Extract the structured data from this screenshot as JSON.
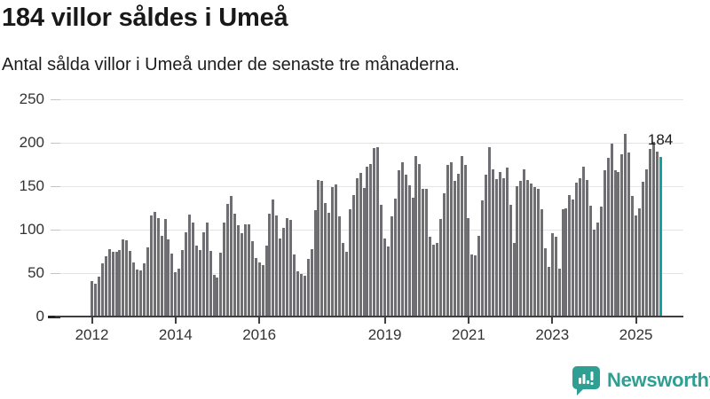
{
  "chart_data": {
    "type": "bar",
    "title": "184 villor såldes i Umeå",
    "subtitle": "Antal sålda villor i Umeå under de senaste tre månaderna.",
    "xlabel": "",
    "ylabel": "",
    "ylim": [
      0,
      250
    ],
    "yticks": [
      0,
      50,
      100,
      150,
      200,
      250
    ],
    "grid": true,
    "x_start": "2012-01",
    "frequency": "monthly",
    "xticks": [
      {
        "label": "2012",
        "month_index": 0
      },
      {
        "label": "2014",
        "month_index": 24
      },
      {
        "label": "2016",
        "month_index": 48
      },
      {
        "label": "2019",
        "month_index": 84
      },
      {
        "label": "2021",
        "month_index": 108
      },
      {
        "label": "2023",
        "month_index": 132
      },
      {
        "label": "2025",
        "month_index": 156
      }
    ],
    "values": [
      41,
      38,
      46,
      61,
      69,
      78,
      75,
      74,
      77,
      89,
      88,
      76,
      62,
      54,
      53,
      61,
      80,
      116,
      120,
      113,
      93,
      112,
      89,
      72,
      51,
      55,
      77,
      97,
      117,
      108,
      82,
      77,
      97,
      108,
      76,
      48,
      45,
      73,
      108,
      130,
      139,
      118,
      105,
      96,
      106,
      106,
      87,
      67,
      62,
      59,
      82,
      118,
      135,
      116,
      90,
      102,
      113,
      111,
      71,
      52,
      49,
      47,
      66,
      78,
      122,
      157,
      156,
      131,
      119,
      149,
      152,
      115,
      85,
      75,
      123,
      140,
      159,
      165,
      148,
      172,
      176,
      194,
      195,
      129,
      90,
      81,
      115,
      136,
      168,
      178,
      163,
      151,
      137,
      185,
      176,
      147,
      147,
      92,
      83,
      85,
      112,
      142,
      174,
      178,
      156,
      164,
      185,
      175,
      113,
      71,
      70,
      93,
      134,
      163,
      195,
      169,
      158,
      166,
      159,
      171,
      129,
      85,
      150,
      156,
      169,
      157,
      153,
      149,
      147,
      123,
      79,
      57,
      96,
      92,
      55,
      123,
      124,
      140,
      135,
      154,
      159,
      172,
      157,
      128,
      100,
      108,
      127,
      168,
      183,
      199,
      168,
      166,
      187,
      210,
      189,
      139,
      116,
      124,
      155,
      169,
      193,
      201,
      190,
      184
    ],
    "highlight": {
      "index": 163,
      "value": 184,
      "label": "184"
    }
  },
  "colors": {
    "bar": "#6f6f73",
    "highlight": "#0ea2a1",
    "gridline": "#e4e4e4",
    "axis": "#3f3f3f",
    "tick_dash": "#c4c4c4",
    "zero_dash": "#222222",
    "label": "#333333",
    "logo": "#2e9f92"
  },
  "logo": {
    "text": "Newsworthy",
    "icon": "newsworthy-chart-speech-bubble-icon"
  }
}
